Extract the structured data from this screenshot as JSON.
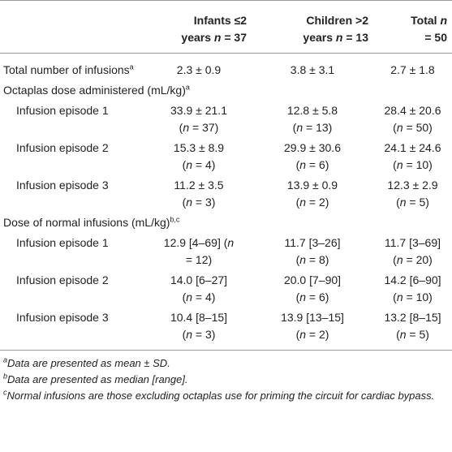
{
  "table": {
    "columns": [
      "Infants ≤2 years n = 37",
      "Children >2 years n = 13",
      "Total n = 50"
    ],
    "rows": [
      {
        "label": "Total number of infusions",
        "note": "a",
        "cells": [
          {
            "value": "2.3 ± 0.9"
          },
          {
            "value": "3.8 ± 3.1"
          },
          {
            "value": "2.7 ± 1.8"
          }
        ]
      },
      {
        "section": "Octaplas dose administered (mL/kg)",
        "note": "a"
      },
      {
        "label": "Infusion episode 1",
        "cells": [
          {
            "value": "33.9 ± 21.1",
            "n": "(n = 37)"
          },
          {
            "value": "12.8 ± 5.8",
            "n": "(n = 13)"
          },
          {
            "value": "28.4 ± 20.6",
            "n": "(n = 50)"
          }
        ]
      },
      {
        "label": "Infusion episode 2",
        "cells": [
          {
            "value": "15.3 ± 8.9",
            "n": "(n = 4)"
          },
          {
            "value": "29.9 ± 30.6",
            "n": "(n = 6)"
          },
          {
            "value": "24.1 ± 24.6",
            "n": "(n = 10)"
          }
        ]
      },
      {
        "label": "Infusion episode 3",
        "cells": [
          {
            "value": "11.2 ± 3.5",
            "n": "(n = 3)"
          },
          {
            "value": "13.9 ± 0.9",
            "n": "(n = 2)"
          },
          {
            "value": "12.3 ± 2.9",
            "n": "(n = 5)"
          }
        ]
      },
      {
        "section": "Dose of normal infusions (mL/kg)",
        "note": "b,c"
      },
      {
        "label": "Infusion episode 1",
        "cells": [
          {
            "value": "12.9 [4–69] (n",
            "n": "= 12)"
          },
          {
            "value": "11.7 [3–26]",
            "n": "(n = 8)"
          },
          {
            "value": "11.7 [3–69]",
            "n": "(n = 20)"
          }
        ]
      },
      {
        "label": "Infusion episode 2",
        "cells": [
          {
            "value": "14.0 [6–27]",
            "n": "(n = 4)"
          },
          {
            "value": "20.0 [7–90]",
            "n": "(n = 6)"
          },
          {
            "value": "14.2 [6–90]",
            "n": "(n = 10)"
          }
        ]
      },
      {
        "label": "Infusion episode 3",
        "cells": [
          {
            "value": "10.4 [8–15]",
            "n": "(n = 3)"
          },
          {
            "value": "13.9 [13–15]",
            "n": "(n = 2)"
          },
          {
            "value": "13.2 [8–15]",
            "n": "(n = 5)"
          }
        ]
      }
    ],
    "footnotes": [
      {
        "mark": "a",
        "text": "Data are presented as mean ± SD."
      },
      {
        "mark": "b",
        "text": "Data are presented as median [range]."
      },
      {
        "mark": "c",
        "text": "Normal infusions are those excluding octaplas use for priming the circuit for cardiac bypass."
      }
    ]
  }
}
